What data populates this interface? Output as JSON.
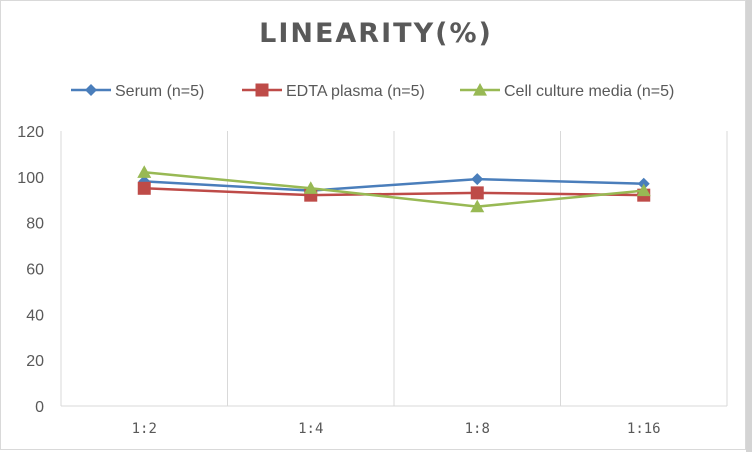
{
  "chart_data": {
    "type": "line",
    "title": "LINEARITY(%)",
    "xlabel": "",
    "ylabel": "",
    "categories": [
      "1:2",
      "1:4",
      "1:8",
      "1:16"
    ],
    "ylim": [
      0,
      120
    ],
    "yticks": [
      0,
      20,
      40,
      60,
      80,
      100,
      120
    ],
    "ytick_labels": [
      "0",
      "20",
      "40",
      "60",
      "80",
      "100",
      "120"
    ],
    "grid": "vertical category separators",
    "legend_position": "top",
    "series": [
      {
        "name": "Serum (n=5)",
        "color": "#4a7ebb",
        "marker": "diamond",
        "values": [
          98,
          94,
          99,
          97
        ]
      },
      {
        "name": "EDTA plasma (n=5)",
        "color": "#be4b48",
        "marker": "square",
        "values": [
          95,
          92,
          93,
          92
        ]
      },
      {
        "name": "Cell culture media (n=5)",
        "color": "#98b954",
        "marker": "triangle",
        "values": [
          102,
          95,
          87,
          94
        ]
      }
    ]
  }
}
